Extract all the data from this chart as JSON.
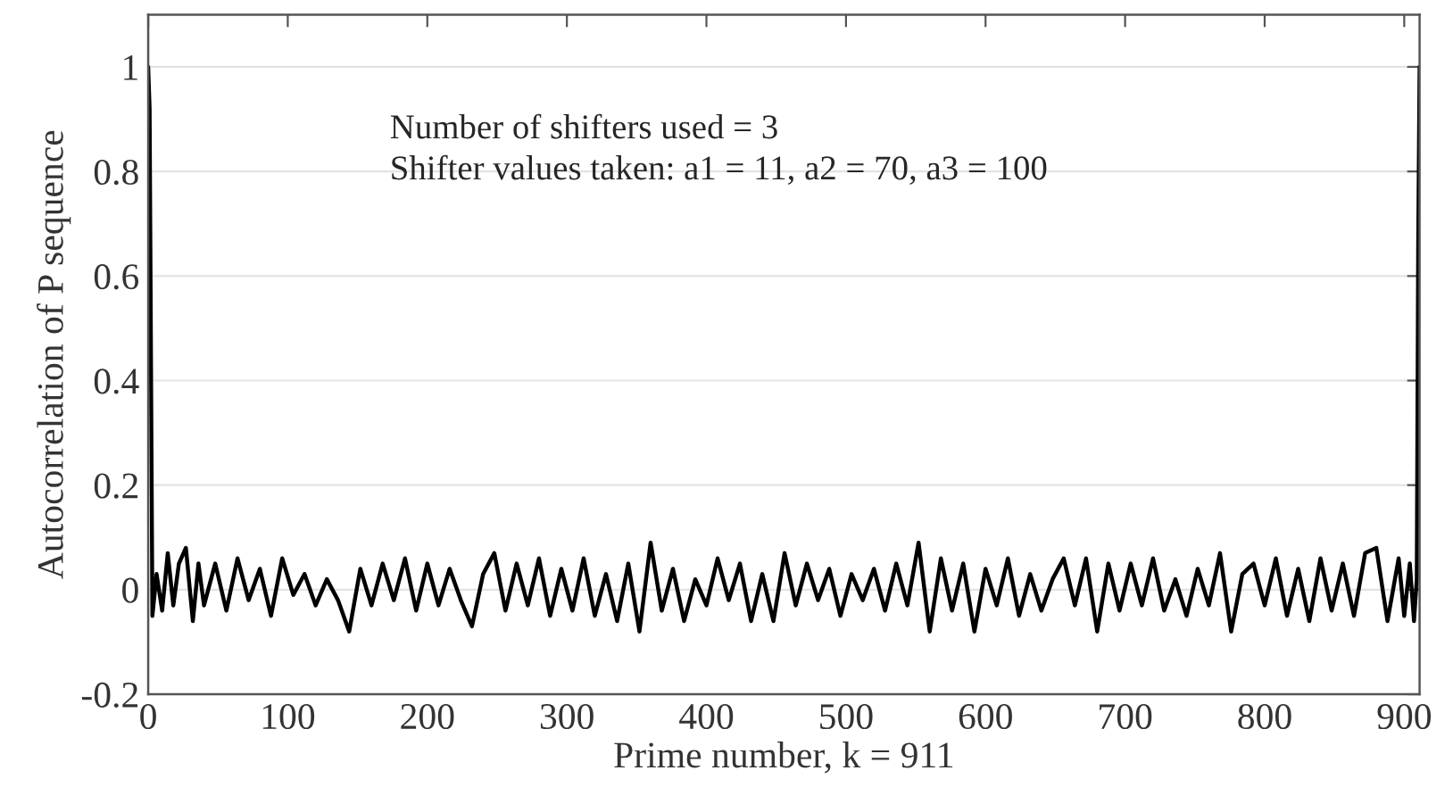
{
  "chart_data": {
    "type": "line",
    "xlabel": "Prime number, k = 911",
    "ylabel": "Autocorrelation of P sequence",
    "annotations": [
      "Number of shifters used = 3\nShifter values taken: a1 = 11, a2 = 70, a3 = 100"
    ],
    "xlim": [
      0,
      911
    ],
    "ylim": [
      -0.2,
      1.1
    ],
    "xticks": [
      0,
      100,
      200,
      300,
      400,
      500,
      600,
      700,
      800,
      900
    ],
    "yticks": [
      -0.2,
      0,
      0.2,
      0.4,
      0.6,
      0.8,
      1
    ],
    "grid": "y",
    "legend": false,
    "marker": "none",
    "line_style": "solid",
    "series": [
      {
        "color": "#000000",
        "x": [
          0,
          1,
          3,
          6,
          10,
          14,
          18,
          22,
          27,
          32,
          36,
          40,
          48,
          56,
          64,
          72,
          80,
          88,
          96,
          104,
          112,
          120,
          128,
          136,
          144,
          152,
          160,
          168,
          176,
          184,
          192,
          200,
          208,
          216,
          224,
          232,
          240,
          248,
          256,
          264,
          272,
          280,
          288,
          296,
          304,
          312,
          320,
          328,
          336,
          344,
          352,
          360,
          368,
          376,
          384,
          392,
          400,
          408,
          416,
          424,
          432,
          440,
          448,
          456,
          464,
          472,
          480,
          488,
          496,
          504,
          512,
          520,
          528,
          536,
          544,
          552,
          560,
          568,
          576,
          584,
          592,
          600,
          608,
          616,
          624,
          632,
          640,
          648,
          656,
          664,
          672,
          680,
          688,
          696,
          704,
          712,
          720,
          728,
          736,
          744,
          752,
          760,
          768,
          776,
          784,
          792,
          800,
          808,
          816,
          824,
          832,
          840,
          848,
          856,
          864,
          872,
          880,
          888,
          896,
          900,
          904,
          907,
          909,
          910,
          911
        ],
        "values": [
          1,
          0.92,
          -0.05,
          0.03,
          -0.04,
          0.07,
          -0.03,
          0.05,
          0.08,
          -0.06,
          0.05,
          -0.03,
          0.05,
          -0.04,
          0.06,
          -0.02,
          0.04,
          -0.05,
          0.06,
          -0.01,
          0.03,
          -0.03,
          0.02,
          -0.02,
          -0.08,
          0.04,
          -0.03,
          0.05,
          -0.02,
          0.06,
          -0.04,
          0.05,
          -0.03,
          0.04,
          -0.02,
          -0.07,
          0.03,
          0.07,
          -0.04,
          0.05,
          -0.03,
          0.06,
          -0.05,
          0.04,
          -0.04,
          0.06,
          -0.05,
          0.03,
          -0.06,
          0.05,
          -0.08,
          0.09,
          -0.04,
          0.04,
          -0.06,
          0.02,
          -0.03,
          0.06,
          -0.02,
          0.05,
          -0.06,
          0.03,
          -0.06,
          0.07,
          -0.03,
          0.05,
          -0.02,
          0.04,
          -0.05,
          0.03,
          -0.02,
          0.04,
          -0.04,
          0.05,
          -0.03,
          0.09,
          -0.08,
          0.06,
          -0.04,
          0.05,
          -0.08,
          0.04,
          -0.03,
          0.06,
          -0.05,
          0.03,
          -0.04,
          0.02,
          0.06,
          -0.03,
          0.06,
          -0.08,
          0.05,
          -0.04,
          0.05,
          -0.03,
          0.06,
          -0.04,
          0.02,
          -0.05,
          0.04,
          -0.03,
          0.07,
          -0.08,
          0.03,
          0.05,
          -0.03,
          0.06,
          -0.05,
          0.04,
          -0.06,
          0.06,
          -0.04,
          0.05,
          -0.05,
          0.07,
          0.08,
          -0.06,
          0.06,
          -0.05,
          0.05,
          -0.06,
          0.02,
          0.65,
          1
        ]
      }
    ]
  }
}
